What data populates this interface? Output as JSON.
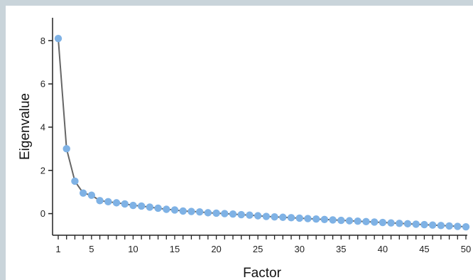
{
  "chart_data": {
    "type": "line",
    "title": "",
    "xlabel": "Factor",
    "ylabel": "Eigenvalue",
    "xlim": [
      1,
      50
    ],
    "ylim": [
      -1,
      8.6
    ],
    "x_ticks": [
      1,
      5,
      10,
      15,
      20,
      25,
      30,
      35,
      40,
      45,
      50
    ],
    "y_ticks": [
      0,
      2,
      4,
      6,
      8
    ],
    "grid": false,
    "legend": "none",
    "colors": {
      "point": "#7fb2e5",
      "line": "#666666",
      "axis": "#222222"
    },
    "x": [
      1,
      2,
      3,
      4,
      5,
      6,
      7,
      8,
      9,
      10,
      11,
      12,
      13,
      14,
      15,
      16,
      17,
      18,
      19,
      20,
      21,
      22,
      23,
      24,
      25,
      26,
      27,
      28,
      29,
      30,
      31,
      32,
      33,
      34,
      35,
      36,
      37,
      38,
      39,
      40,
      41,
      42,
      43,
      44,
      45,
      46,
      47,
      48,
      49,
      50
    ],
    "values": [
      8.1,
      3.0,
      1.5,
      0.95,
      0.85,
      0.6,
      0.55,
      0.5,
      0.45,
      0.38,
      0.35,
      0.3,
      0.25,
      0.2,
      0.17,
      0.12,
      0.1,
      0.08,
      0.04,
      0.02,
      0.0,
      -0.02,
      -0.05,
      -0.07,
      -0.1,
      -0.13,
      -0.15,
      -0.17,
      -0.19,
      -0.21,
      -0.23,
      -0.25,
      -0.27,
      -0.29,
      -0.31,
      -0.33,
      -0.35,
      -0.37,
      -0.39,
      -0.41,
      -0.43,
      -0.45,
      -0.47,
      -0.49,
      -0.51,
      -0.53,
      -0.55,
      -0.57,
      -0.59,
      -0.61
    ]
  }
}
